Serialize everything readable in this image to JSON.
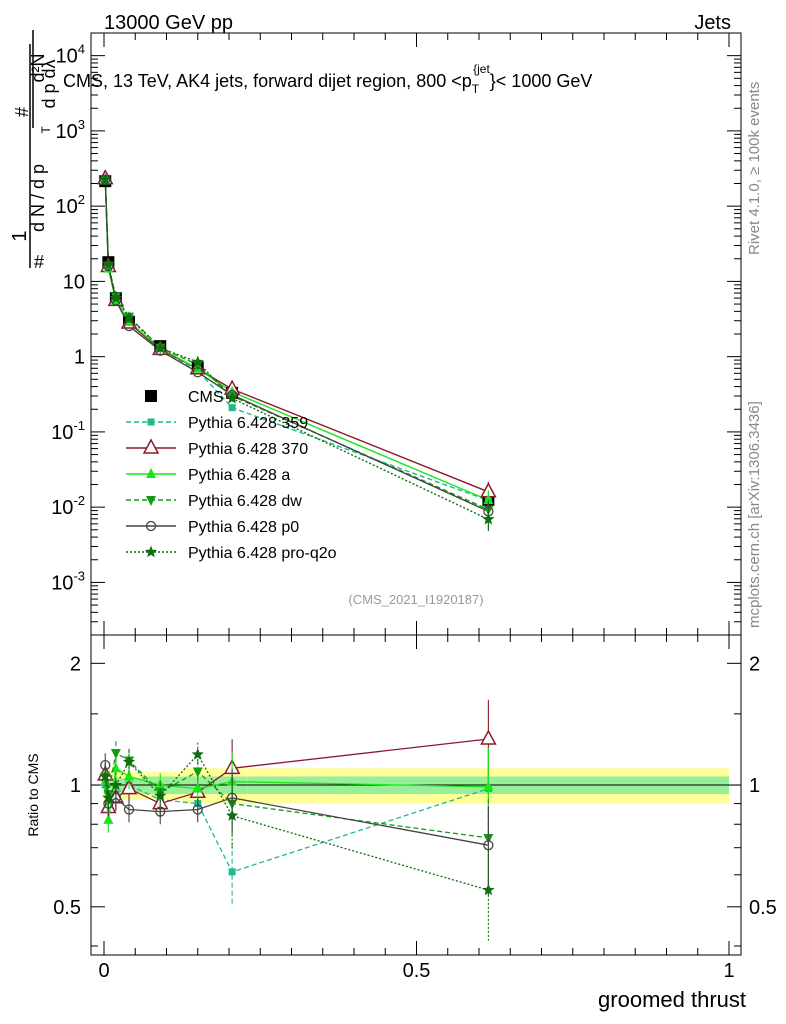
{
  "header": {
    "left": "13000 GeV pp",
    "right": "Jets",
    "side_top": "Rivet 4.1.0, ≥ 100k events",
    "side_bottom": "mcplots.cern.ch [arXiv:1306.3436]",
    "ratio_ylabel": "Ratio to CMS",
    "xlabel": "groomed thrust",
    "analysis_tag": "(CMS_2021_I1920187)"
  },
  "chart_data": [
    {
      "type": "line",
      "title": "CMS, 13 TeV, AK4 jets, forward dijet region, 800 <p_T^{jet}< 1000 GeV",
      "ylabel": "1/dN/dp_T · d²N/dp_T dλ",
      "xlabel": "groomed thrust",
      "xlim": [
        -0.03,
        1.0
      ],
      "ylim": [
        0.0002,
        20000
      ],
      "yscale": "log",
      "xticks": [
        0,
        0.5,
        1
      ],
      "xtick_labels": [
        "0",
        "0.5",
        "1"
      ],
      "yticks": [
        0.001,
        0.01,
        0.1,
        1,
        10,
        100,
        1000,
        10000
      ],
      "ytick_labels": [
        "10^-3",
        "10^-2",
        "10^-1",
        "1",
        "10",
        "10^2",
        "10^3",
        "10^4"
      ],
      "legend_position": "middle-left",
      "x": [
        0.002,
        0.007,
        0.019,
        0.04,
        0.09,
        0.15,
        0.205,
        0.615
      ],
      "series": [
        {
          "name": "CMS",
          "color": "#000000",
          "style": "points",
          "marker": "square",
          "values": [
            215,
            18,
            6.0,
            2.9,
            1.38,
            0.72,
            0.33,
            0.0125
          ]
        },
        {
          "name": "Pythia 6.428 359",
          "color": "#1fb88f",
          "dash": "5,3",
          "marker": "square-small",
          "values": [
            215,
            16.5,
            5.7,
            2.9,
            1.27,
            0.65,
            0.21,
            0.0123
          ]
        },
        {
          "name": "Pythia 6.428 370",
          "color": "#8b1a2b",
          "dash": "",
          "marker": "triangle-open",
          "values": [
            232,
            15.8,
            5.6,
            2.8,
            1.25,
            0.69,
            0.37,
            0.016
          ]
        },
        {
          "name": "Pythia 6.428 a",
          "color": "#19e619",
          "dash": "",
          "marker": "triangle",
          "values": [
            220,
            14.8,
            5.5,
            2.9,
            1.3,
            0.69,
            0.34,
            0.0124
          ]
        },
        {
          "name": "Pythia 6.428 dw",
          "color": "#139b13",
          "dash": "5,3",
          "marker": "triangle-down",
          "values": [
            225,
            16.2,
            6.3,
            3.4,
            1.32,
            0.78,
            0.3,
            0.0093
          ]
        },
        {
          "name": "Pythia 6.428 p0",
          "color": "#444444",
          "dash": "",
          "marker": "circle-open",
          "values": [
            225,
            16.0,
            5.6,
            2.55,
            1.2,
            0.62,
            0.31,
            0.0088
          ]
        },
        {
          "name": "Pythia 6.428 pro-q2o",
          "color": "#0f6e0f",
          "dash": "2,2",
          "marker": "star",
          "values": [
            225,
            16.8,
            6.0,
            3.3,
            1.3,
            0.85,
            0.28,
            0.0069
          ]
        }
      ]
    },
    {
      "type": "line",
      "ylabel": "Ratio to CMS",
      "xlabel": "groomed thrust",
      "xlim": [
        -0.03,
        1.0
      ],
      "ylim": [
        0.38,
        2.35
      ],
      "yscale": "log",
      "yticks": [
        0.5,
        1,
        2
      ],
      "ytick_labels": [
        "0.5",
        "1",
        "2"
      ],
      "x": [
        0.002,
        0.007,
        0.019,
        0.04,
        0.09,
        0.15,
        0.205,
        0.615
      ],
      "band_edges": [
        0,
        0.004,
        0.01,
        0.03,
        0.06,
        0.125,
        0.175,
        0.23,
        1.0
      ],
      "band_inner": [
        0.05,
        0.05,
        0.04,
        0.04,
        0.05,
        0.05,
        0.05,
        0.05
      ],
      "band_outer": [
        0.1,
        0.1,
        0.08,
        0.08,
        0.08,
        0.1,
        0.1,
        0.1
      ],
      "series": [
        {
          "name": "Pythia 6.428 359",
          "values": [
            1.0,
            0.9,
            0.95,
            1.0,
            0.92,
            0.9,
            0.61,
            0.98
          ]
        },
        {
          "name": "Pythia 6.428 370",
          "values": [
            1.06,
            0.88,
            0.93,
            0.98,
            0.9,
            0.96,
            1.1,
            1.3
          ]
        },
        {
          "name": "Pythia 6.428 a",
          "values": [
            1.02,
            0.82,
            1.1,
            1.05,
            1.0,
            0.98,
            1.02,
            0.99
          ]
        },
        {
          "name": "Pythia 6.428 dw",
          "values": [
            1.05,
            0.95,
            1.2,
            1.15,
            0.96,
            1.08,
            0.9,
            0.74
          ]
        },
        {
          "name": "Pythia 6.428 p0",
          "values": [
            1.12,
            0.9,
            0.93,
            0.87,
            0.86,
            0.87,
            0.93,
            0.71
          ]
        },
        {
          "name": "Pythia 6.428 pro-q2o",
          "values": [
            1.05,
            0.93,
            1.0,
            1.14,
            0.94,
            1.19,
            0.84,
            0.55
          ]
        }
      ]
    }
  ]
}
